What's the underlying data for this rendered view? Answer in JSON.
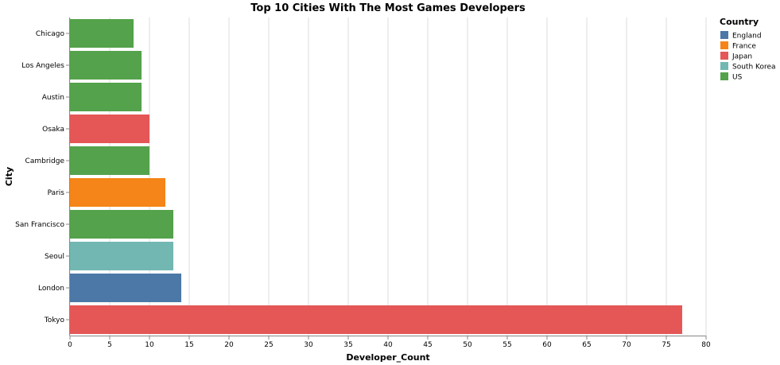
{
  "chart_data": {
    "type": "bar",
    "orientation": "horizontal",
    "title": "Top 10 Cities With The Most Games Developers",
    "xlabel": "Developer_Count",
    "ylabel": "City",
    "xlim": [
      0,
      80
    ],
    "x_ticks": [
      0,
      5,
      10,
      15,
      20,
      25,
      30,
      35,
      40,
      45,
      50,
      55,
      60,
      65,
      70,
      75,
      80
    ],
    "grid": true,
    "legend": {
      "title": "Country",
      "placement": "top-right",
      "entries": [
        {
          "name": "England",
          "color": "#4c78a8"
        },
        {
          "name": "France",
          "color": "#f58518"
        },
        {
          "name": "Japan",
          "color": "#e45756"
        },
        {
          "name": "South Korea",
          "color": "#72b7b2"
        },
        {
          "name": "US",
          "color": "#54a24b"
        }
      ]
    },
    "categories": [
      "Chicago",
      "Los Angeles",
      "Austin",
      "Osaka",
      "Cambridge",
      "Paris",
      "San Francisco",
      "Seoul",
      "London",
      "Tokyo"
    ],
    "values": [
      8,
      9,
      9,
      10,
      10,
      12,
      13,
      13,
      14,
      77
    ],
    "countries": [
      "US",
      "US",
      "US",
      "Japan",
      "US",
      "France",
      "US",
      "South Korea",
      "England",
      "Japan"
    ]
  }
}
